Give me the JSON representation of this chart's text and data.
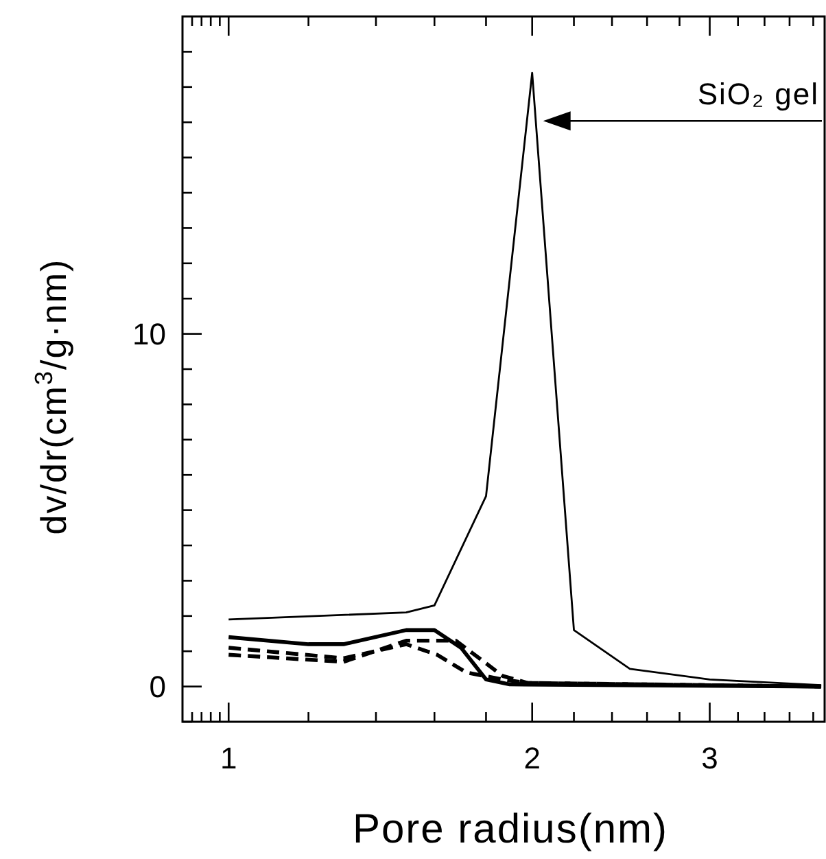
{
  "chart_data": {
    "type": "line",
    "xlabel": "Pore radius(nm)",
    "ylabel": "dv/dr(cm$^{3}$/g·nm)",
    "log": "x",
    "grid": false,
    "marker": "none",
    "xlim": [
      0.9,
      3.9
    ],
    "ylim": [
      -1,
      19
    ],
    "xticks": [
      {
        "value": 0.92,
        "label": null
      },
      {
        "value": 0.94,
        "label": null
      },
      {
        "value": 0.96,
        "label": null
      },
      {
        "value": 0.98,
        "label": null
      },
      1,
      {
        "value": 1.2,
        "label": null
      },
      {
        "value": 1.4,
        "label": null
      },
      {
        "value": 1.6,
        "label": null
      },
      {
        "value": 1.8,
        "label": null
      },
      2,
      {
        "value": 2.2,
        "label": null
      },
      {
        "value": 2.4,
        "label": null
      },
      {
        "value": 2.6,
        "label": null
      },
      {
        "value": 2.8,
        "label": null
      },
      3,
      {
        "value": 3.2,
        "label": null
      },
      {
        "value": 3.4,
        "label": null
      },
      {
        "value": 3.6,
        "label": null
      },
      {
        "value": 3.8,
        "label": null
      }
    ],
    "yticks": [
      {
        "value": -1,
        "label": null
      },
      0,
      {
        "value": 1,
        "label": null
      },
      {
        "value": 2,
        "label": null
      },
      {
        "value": 3,
        "label": null
      },
      {
        "value": 4,
        "label": null
      },
      {
        "value": 5,
        "label": null
      },
      {
        "value": 6,
        "label": null
      },
      {
        "value": 7,
        "label": null
      },
      {
        "value": 8,
        "label": null
      },
      {
        "value": 9,
        "label": null
      },
      10,
      {
        "value": 11,
        "label": null
      },
      {
        "value": 12,
        "label": null
      },
      {
        "value": 13,
        "label": null
      },
      {
        "value": 14,
        "label": null
      },
      {
        "value": 15,
        "label": null
      },
      {
        "value": 16,
        "label": null
      },
      {
        "value": 17,
        "label": null
      },
      {
        "value": 18,
        "label": null
      }
    ],
    "series": [
      {
        "color": "#000000",
        "line_style": "solid",
        "x": [
          1.0,
          1.5,
          1.6,
          1.8,
          2.0,
          2.2,
          2.5,
          3.0,
          3.87
        ],
        "values": [
          1.9,
          2.1,
          2.3,
          5.4,
          17.4,
          1.6,
          0.5,
          0.2,
          0.04
        ]
      },
      {
        "color": "#000000",
        "line_style": "solid",
        "x": [
          1.0,
          1.2,
          1.3,
          1.5,
          1.6,
          1.7,
          1.8,
          1.9,
          3.87
        ],
        "values": [
          1.4,
          1.2,
          1.2,
          1.6,
          1.6,
          1.1,
          0.2,
          0.06,
          0.0
        ]
      },
      {
        "color": "#000000",
        "line_style": "dashed",
        "x": [
          1.0,
          1.3,
          1.5,
          1.61,
          1.72,
          1.87,
          1.98,
          3.87
        ],
        "values": [
          1.1,
          0.8,
          1.2,
          0.9,
          0.4,
          0.2,
          0.1,
          0.0
        ]
      },
      {
        "color": "#000000",
        "line_style": "dashed",
        "x": [
          1.0,
          1.3,
          1.5,
          1.68,
          1.87,
          1.98,
          3.87
        ],
        "values": [
          0.9,
          0.7,
          1.3,
          1.3,
          0.3,
          0.1,
          0.0
        ]
      }
    ],
    "annotations": [
      "SiO₂ gel"
    ]
  }
}
